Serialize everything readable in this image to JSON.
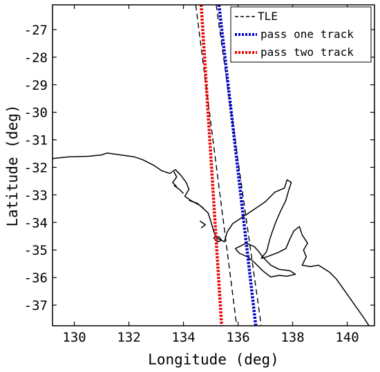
{
  "chart_data": {
    "type": "line",
    "title": "",
    "xlabel": "Longitude (deg)",
    "ylabel": "Latitude (deg)",
    "xlim": [
      129.2,
      141.0
    ],
    "ylim": [
      -37.75,
      -26.1
    ],
    "xticks": [
      130,
      132,
      134,
      136,
      138,
      140
    ],
    "yticks": [
      -27,
      -28,
      -29,
      -30,
      -31,
      -32,
      -33,
      -34,
      -35,
      -36,
      -37
    ],
    "xtick_labels": [
      "130",
      "132",
      "134",
      "136",
      "138",
      "140"
    ],
    "ytick_labels": [
      "-27",
      "-28",
      "-29",
      "-30",
      "-31",
      "-32",
      "-33",
      "-34",
      "-35",
      "-36",
      "-37"
    ],
    "grid": false,
    "legend_position": "top-right",
    "legend": [
      {
        "label": "TLE",
        "color": "#000000",
        "style": "dashed"
      },
      {
        "label": "pass one track",
        "color": "#0000cc",
        "style": "dotted"
      },
      {
        "label": "pass two track",
        "color": "#ee0000",
        "style": "dotted"
      }
    ],
    "series": [
      {
        "name": "TLE",
        "color": "#000000",
        "style": "dashed",
        "x": [
          134.45,
          135.95
        ],
        "y": [
          -26.1,
          -37.75
        ]
      },
      {
        "name": "TLE",
        "color": "#000000",
        "style": "dashed",
        "x": [
          135.2,
          136.85
        ],
        "y": [
          -26.1,
          -37.75
        ]
      },
      {
        "name": "pass one track",
        "color": "#0000cc",
        "style": "dotted",
        "x": [
          135.3,
          136.65
        ],
        "y": [
          -26.1,
          -37.75
        ]
      },
      {
        "name": "pass two track",
        "color": "#ee0000",
        "style": "dotted",
        "x": [
          134.65,
          135.4
        ],
        "y": [
          -26.1,
          -37.75
        ]
      }
    ],
    "coastline": {
      "color": "#000000",
      "segments": [
        [
          [
            129.2,
            -31.68
          ],
          [
            129.8,
            -31.62
          ],
          [
            130.5,
            -31.6
          ],
          [
            131.0,
            -31.55
          ],
          [
            131.2,
            -31.48
          ],
          [
            131.7,
            -31.55
          ],
          [
            132.2,
            -31.62
          ],
          [
            132.5,
            -31.72
          ],
          [
            132.9,
            -31.92
          ],
          [
            133.2,
            -32.12
          ],
          [
            133.5,
            -32.22
          ],
          [
            133.7,
            -32.08
          ],
          [
            133.9,
            -32.28
          ],
          [
            134.1,
            -32.55
          ],
          [
            134.2,
            -32.8
          ],
          [
            134.05,
            -33.05
          ],
          [
            134.3,
            -33.22
          ],
          [
            134.6,
            -33.38
          ],
          [
            134.9,
            -33.65
          ],
          [
            135.0,
            -33.95
          ],
          [
            135.1,
            -34.3
          ],
          [
            135.2,
            -34.55
          ],
          [
            135.5,
            -34.7
          ],
          [
            135.6,
            -34.35
          ],
          [
            135.8,
            -34.05
          ],
          [
            136.1,
            -33.85
          ],
          [
            136.55,
            -33.55
          ],
          [
            137.0,
            -33.25
          ],
          [
            137.35,
            -32.9
          ],
          [
            137.7,
            -32.75
          ],
          [
            137.8,
            -32.45
          ],
          [
            137.95,
            -32.55
          ],
          [
            137.85,
            -32.85
          ],
          [
            137.75,
            -33.2
          ],
          [
            137.55,
            -33.6
          ],
          [
            137.4,
            -33.95
          ],
          [
            137.25,
            -34.35
          ],
          [
            137.15,
            -34.65
          ],
          [
            137.05,
            -35.05
          ],
          [
            136.85,
            -35.3
          ],
          [
            137.05,
            -35.25
          ],
          [
            137.45,
            -35.1
          ],
          [
            137.75,
            -34.95
          ],
          [
            137.9,
            -34.6
          ],
          [
            138.05,
            -34.3
          ],
          [
            138.25,
            -34.15
          ],
          [
            138.35,
            -34.45
          ],
          [
            138.55,
            -34.75
          ],
          [
            138.4,
            -35.0
          ],
          [
            138.5,
            -35.25
          ],
          [
            138.35,
            -35.55
          ],
          [
            138.65,
            -35.6
          ],
          [
            138.95,
            -35.55
          ],
          [
            139.35,
            -35.8
          ],
          [
            139.6,
            -36.05
          ],
          [
            139.85,
            -36.4
          ],
          [
            140.1,
            -36.75
          ],
          [
            140.35,
            -37.1
          ],
          [
            140.6,
            -37.45
          ],
          [
            140.8,
            -37.75
          ]
        ],
        [
          [
            135.9,
            -34.95
          ],
          [
            136.3,
            -34.75
          ],
          [
            136.6,
            -34.88
          ],
          [
            136.75,
            -35.05
          ],
          [
            136.9,
            -35.25
          ],
          [
            137.2,
            -35.55
          ],
          [
            137.5,
            -35.7
          ],
          [
            137.9,
            -35.75
          ],
          [
            138.1,
            -35.88
          ],
          [
            137.8,
            -35.95
          ],
          [
            137.5,
            -35.92
          ],
          [
            137.2,
            -35.98
          ],
          [
            136.9,
            -35.75
          ],
          [
            136.6,
            -35.45
          ],
          [
            136.35,
            -35.25
          ],
          [
            136.05,
            -35.12
          ],
          [
            135.9,
            -34.95
          ]
        ],
        [
          [
            133.65,
            -32.15
          ],
          [
            133.75,
            -32.35
          ],
          [
            133.6,
            -32.55
          ],
          [
            133.75,
            -32.7
          ]
        ],
        [
          [
            133.65,
            -32.65
          ],
          [
            133.85,
            -32.8
          ],
          [
            134.0,
            -32.95
          ]
        ],
        [
          [
            134.2,
            -33.2
          ],
          [
            134.5,
            -33.3
          ],
          [
            134.75,
            -33.5
          ]
        ],
        [
          [
            134.6,
            -33.95
          ],
          [
            134.8,
            -34.08
          ],
          [
            134.65,
            -34.2
          ]
        ],
        [
          [
            135.1,
            -34.55
          ],
          [
            135.25,
            -34.7
          ],
          [
            135.4,
            -34.65
          ],
          [
            135.3,
            -34.52
          ],
          [
            135.1,
            -34.55
          ]
        ]
      ]
    }
  }
}
